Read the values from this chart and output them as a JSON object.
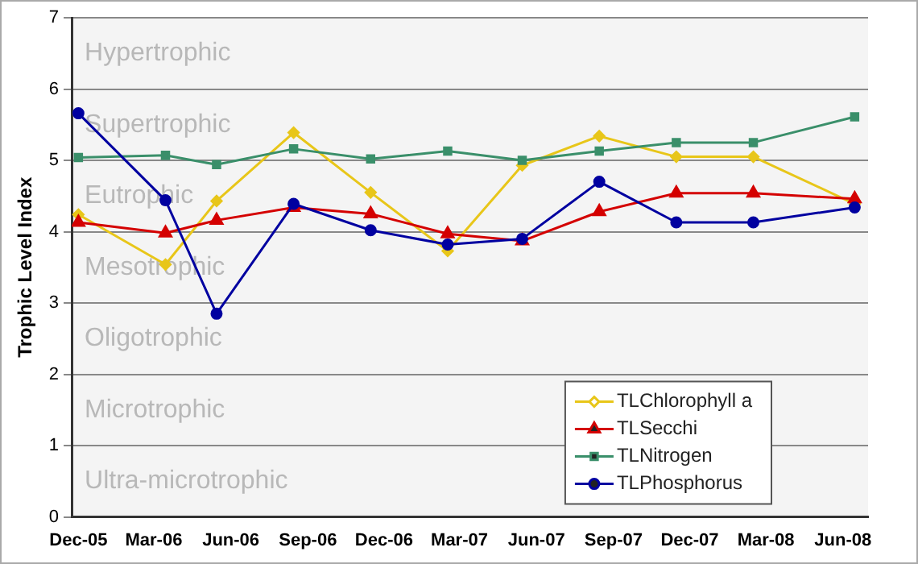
{
  "chart_data": {
    "type": "line",
    "ylabel": "Trophic Level Index",
    "x": [
      "2005-12-01",
      "2006-03-15",
      "2006-05-15",
      "2006-08-15",
      "2006-11-15",
      "2007-02-15",
      "2007-05-15",
      "2007-08-15",
      "2007-11-15",
      "2008-02-15",
      "2008-06-15"
    ],
    "xlim": [
      "2005-11-23",
      "2008-07-01"
    ],
    "xticks": [
      {
        "value": "2005-12-01",
        "label": "Dec-05"
      },
      {
        "value": "2006-03-01",
        "label": "Mar-06"
      },
      {
        "value": "2006-06-01",
        "label": "Jun-06"
      },
      {
        "value": "2006-09-01",
        "label": "Sep-06"
      },
      {
        "value": "2006-12-01",
        "label": "Dec-06"
      },
      {
        "value": "2007-03-01",
        "label": "Mar-07"
      },
      {
        "value": "2007-06-01",
        "label": "Jun-07"
      },
      {
        "value": "2007-09-01",
        "label": "Sep-07"
      },
      {
        "value": "2007-12-01",
        "label": "Dec-07"
      },
      {
        "value": "2008-03-01",
        "label": "Mar-08"
      },
      {
        "value": "2008-06-01",
        "label": "Jun-08"
      }
    ],
    "ylim": [
      0,
      7
    ],
    "yticks": [
      0,
      1,
      2,
      3,
      4,
      5,
      6,
      7
    ],
    "grid": "y",
    "legend": "bottom right",
    "line_style": "solid",
    "series": [
      {
        "name": "TLChlorophyll a",
        "color": "#e8c619",
        "marker": "diamond",
        "values": [
          4.24,
          3.54,
          4.43,
          5.39,
          4.55,
          3.73,
          4.93,
          5.34,
          5.05,
          5.05,
          4.39
        ]
      },
      {
        "name": "TLSecchi",
        "color": "#d40000",
        "marker": "triangle",
        "values": [
          4.13,
          3.98,
          4.16,
          4.34,
          4.25,
          3.97,
          3.87,
          4.28,
          4.54,
          4.54,
          4.46
        ]
      },
      {
        "name": "TLNitrogen",
        "color": "#3a8f6a",
        "marker": "square",
        "values": [
          5.04,
          5.07,
          4.94,
          5.16,
          5.02,
          5.13,
          5.0,
          5.13,
          5.25,
          5.25,
          5.61
        ]
      },
      {
        "name": "TLPhosphorus",
        "color": "#0000a0",
        "marker": "circle",
        "values": [
          5.66,
          4.44,
          2.85,
          4.39,
          4.02,
          3.82,
          3.9,
          4.7,
          4.13,
          4.13,
          4.34
        ]
      }
    ],
    "annotations": [
      "Hypertrophic",
      "Supertrophic",
      "Eutrophic",
      "Mesotrophic",
      "Oligotrophic",
      "Microtrophic",
      "Ultra-microtrophic"
    ]
  }
}
